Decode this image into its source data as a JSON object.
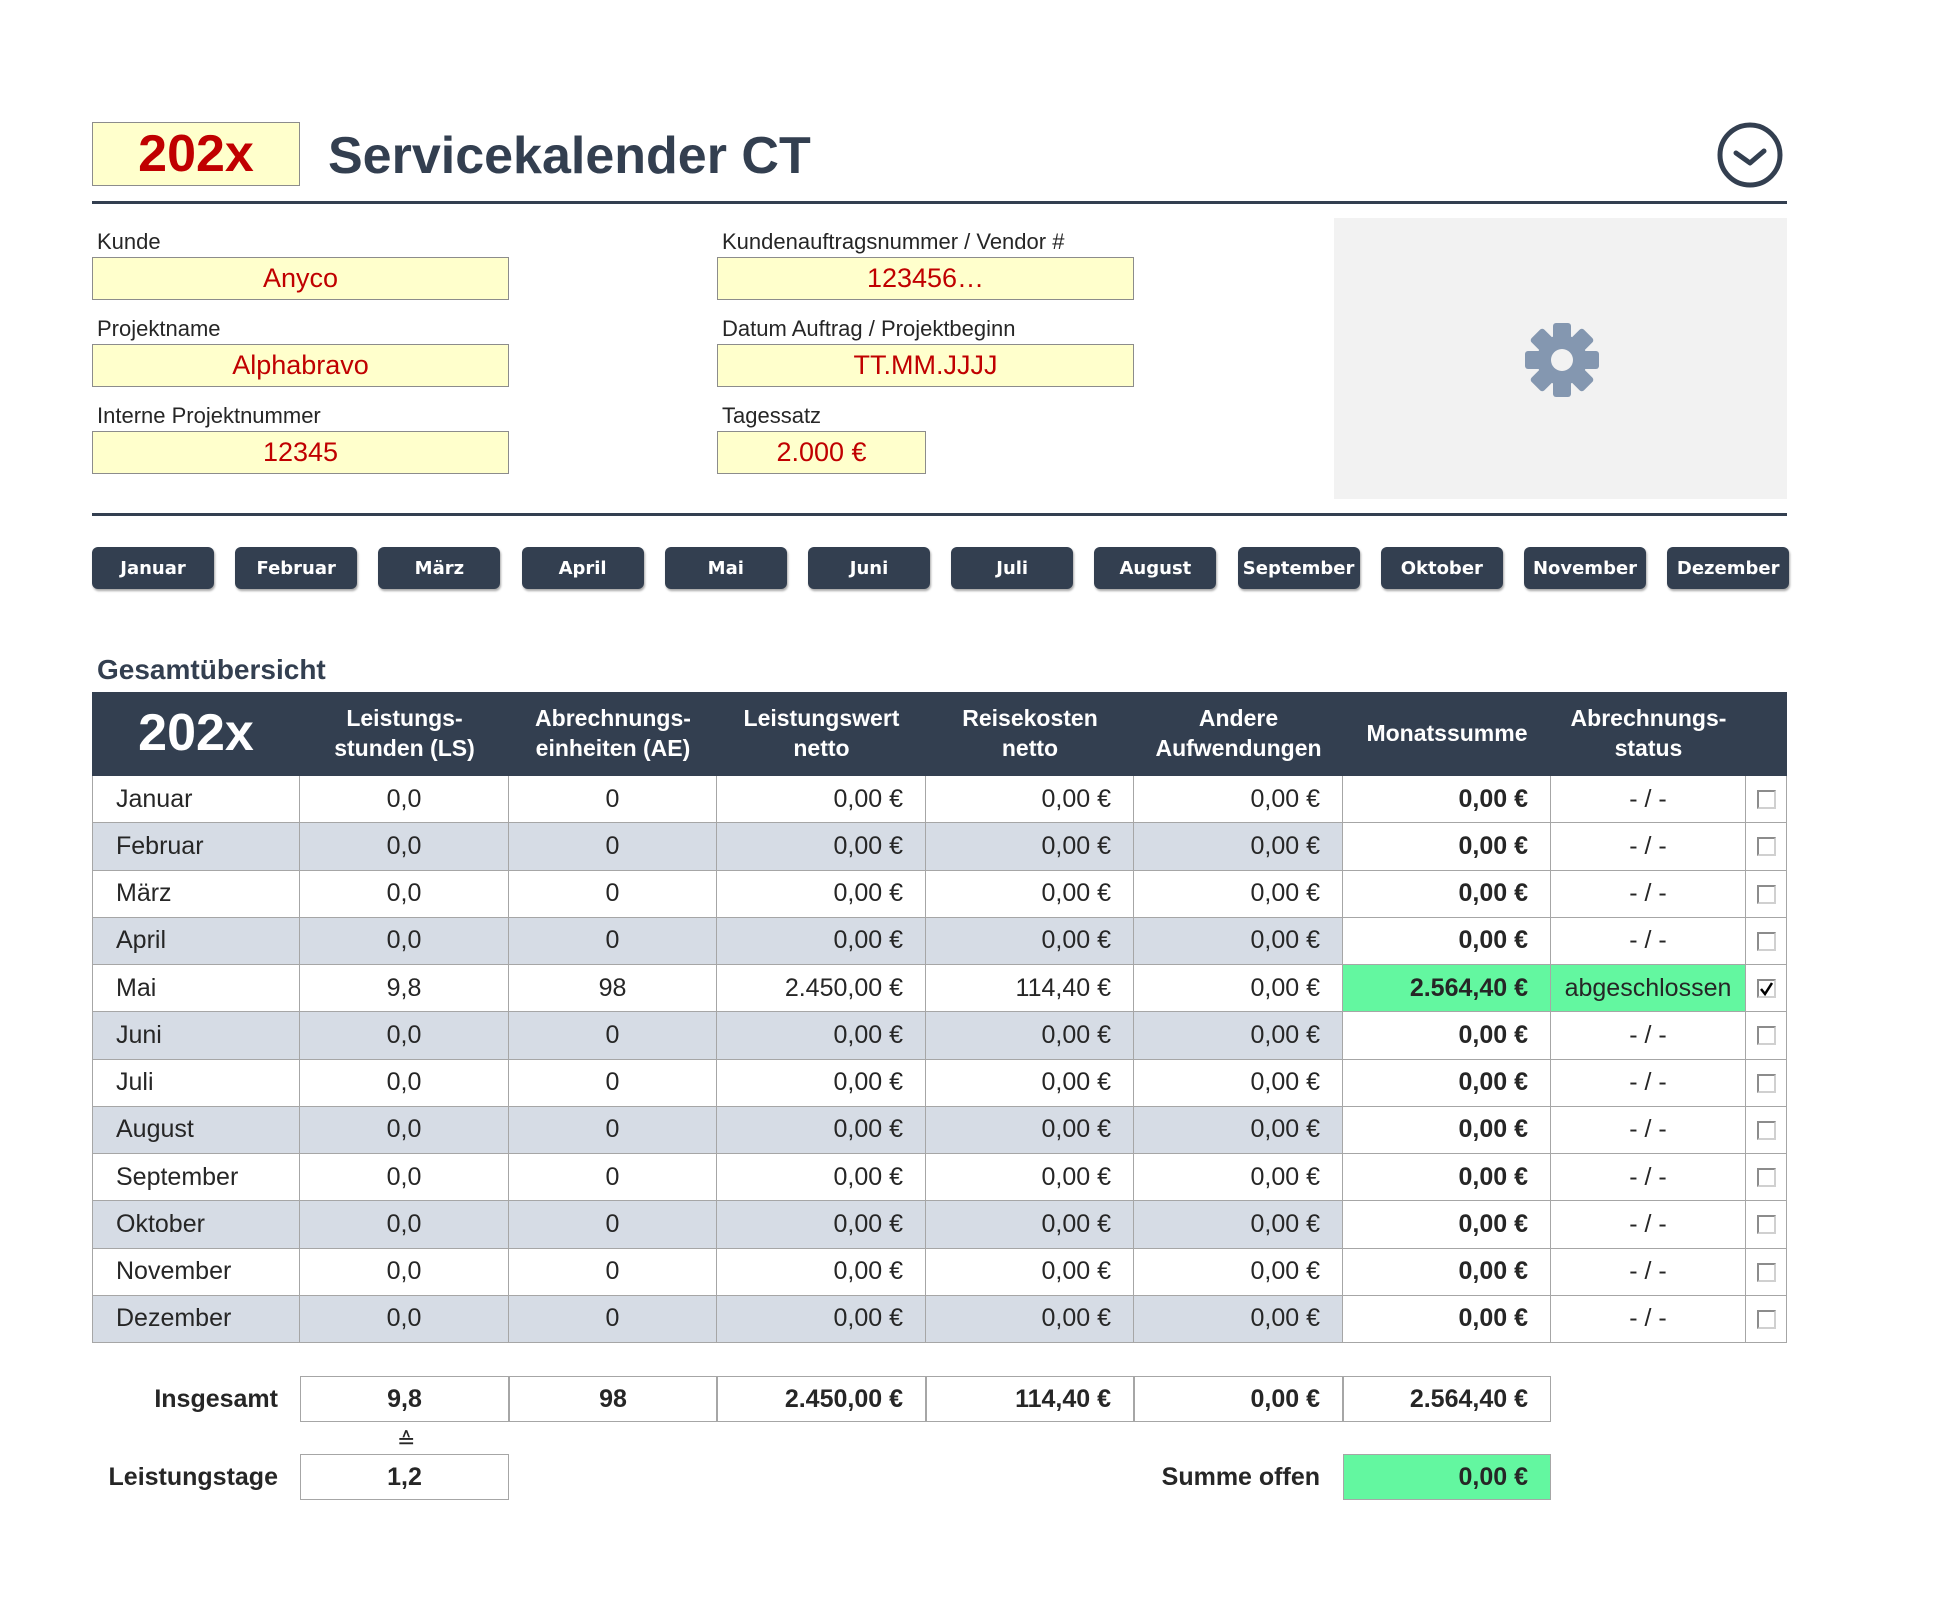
{
  "header": {
    "year": "202x",
    "title": "Servicekalender CT"
  },
  "fields": [
    {
      "label": "Kunde",
      "value": "Anyco"
    },
    {
      "label": "Kundenauftragsnummer / Vendor #",
      "value": "123456…"
    },
    {
      "label": "Projektname",
      "value": "Alphabravo"
    },
    {
      "label": "Datum Auftrag / Projektbeginn",
      "value": "TT.MM.JJJJ"
    },
    {
      "label": "Interne Projektnummer",
      "value": "12345"
    },
    {
      "label": "Tagessatz",
      "value": "2.000 €"
    }
  ],
  "months": [
    "Januar",
    "Februar",
    "März",
    "April",
    "Mai",
    "Juni",
    "Juli",
    "August",
    "September",
    "Oktober",
    "November",
    "Dezember"
  ],
  "table": {
    "title": "Gesamtübersicht",
    "corner": "202x",
    "columns": [
      "Leistungs-\nstunden (LS)",
      "Abrechnungs-\neinheiten (AE)",
      "Leistungswert\nnetto",
      "Reisekosten\nnetto",
      "Andere\nAufwendungen",
      "Monatssumme",
      "Abrechnungs-\nstatus"
    ],
    "rows": [
      {
        "cells": [
          "Januar",
          "0,0",
          "0",
          "0,00 €",
          "0,00 €",
          "0,00 €",
          "0,00 €",
          "- / -"
        ],
        "done": false
      },
      {
        "cells": [
          "Februar",
          "0,0",
          "0",
          "0,00 €",
          "0,00 €",
          "0,00 €",
          "0,00 €",
          "- / -"
        ],
        "done": false
      },
      {
        "cells": [
          "März",
          "0,0",
          "0",
          "0,00 €",
          "0,00 €",
          "0,00 €",
          "0,00 €",
          "- / -"
        ],
        "done": false
      },
      {
        "cells": [
          "April",
          "0,0",
          "0",
          "0,00 €",
          "0,00 €",
          "0,00 €",
          "0,00 €",
          "- / -"
        ],
        "done": false
      },
      {
        "cells": [
          "Mai",
          "9,8",
          "98",
          "2.450,00 €",
          "114,40 €",
          "0,00 €",
          "2.564,40 €",
          "abgeschlossen"
        ],
        "done": true
      },
      {
        "cells": [
          "Juni",
          "0,0",
          "0",
          "0,00 €",
          "0,00 €",
          "0,00 €",
          "0,00 €",
          "- / -"
        ],
        "done": false
      },
      {
        "cells": [
          "Juli",
          "0,0",
          "0",
          "0,00 €",
          "0,00 €",
          "0,00 €",
          "0,00 €",
          "- / -"
        ],
        "done": false
      },
      {
        "cells": [
          "August",
          "0,0",
          "0",
          "0,00 €",
          "0,00 €",
          "0,00 €",
          "0,00 €",
          "- / -"
        ],
        "done": false
      },
      {
        "cells": [
          "September",
          "0,0",
          "0",
          "0,00 €",
          "0,00 €",
          "0,00 €",
          "0,00 €",
          "- / -"
        ],
        "done": false
      },
      {
        "cells": [
          "Oktober",
          "0,0",
          "0",
          "0,00 €",
          "0,00 €",
          "0,00 €",
          "0,00 €",
          "- / -"
        ],
        "done": false
      },
      {
        "cells": [
          "November",
          "0,0",
          "0",
          "0,00 €",
          "0,00 €",
          "0,00 €",
          "0,00 €",
          "- / -"
        ],
        "done": false
      },
      {
        "cells": [
          "Dezember",
          "0,0",
          "0",
          "0,00 €",
          "0,00 €",
          "0,00 €",
          "0,00 €",
          "- / -"
        ],
        "done": false
      }
    ],
    "totals": {
      "label": "Insgesamt",
      "cells": [
        "9,8",
        "98",
        "2.450,00 €",
        "114,40 €",
        "0,00 €",
        "2.564,40 €"
      ]
    },
    "equivalence": "≙",
    "days": {
      "label": "Leistungstage",
      "value": "1,2"
    },
    "open": {
      "label": "Summe offen",
      "value": "0,00 €"
    }
  }
}
